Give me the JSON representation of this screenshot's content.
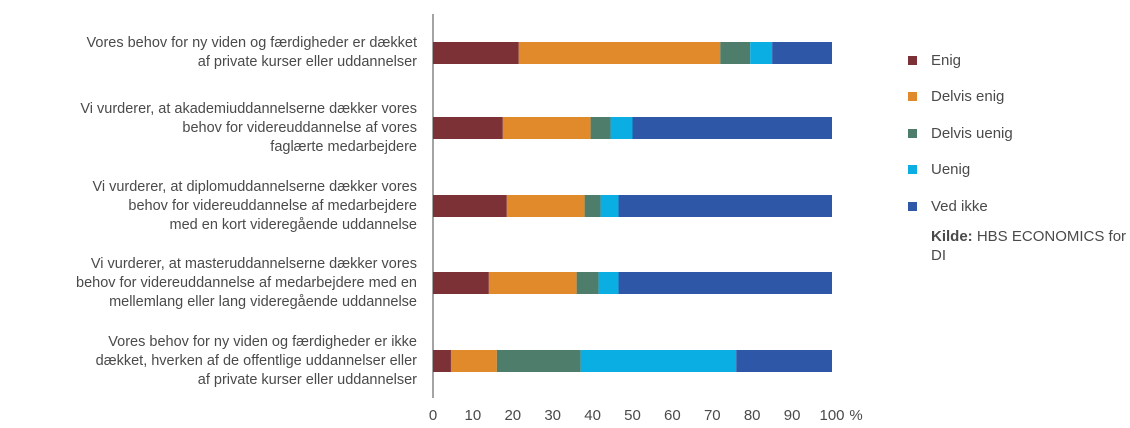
{
  "chart_data": {
    "type": "bar",
    "orientation": "horizontal",
    "stacked": true,
    "categories": [
      [
        "Vores behov for ny viden og færdigheder er dækket",
        "af private kurser eller uddannelser"
      ],
      [
        "Vi vurderer, at akademiuddannelserne dækker vores",
        "behov for videreuddannelse af vores",
        "faglærte medarbejdere"
      ],
      [
        "Vi vurderer, at diplomuddannelserne dækker vores",
        "behov for videreuddannelse af medarbejdere",
        "med en kort videregående uddannelse"
      ],
      [
        "Vi vurderer, at masteruddannelserne dækker vores",
        "behov for videreuddannelse af medarbejdere med en",
        "mellemlang eller lang videregående uddannelse"
      ],
      [
        "Vores behov for ny viden og færdigheder er ikke",
        "dækket, hverken af de offentlige uddannelser eller",
        "af private kurser eller uddannelser"
      ]
    ],
    "series": [
      {
        "name": "Enig",
        "color": "#7b3136",
        "values": [
          21.5,
          17.5,
          18.5,
          14.0,
          4.5
        ]
      },
      {
        "name": "Delvis enig",
        "color": "#e08a2c",
        "values": [
          50.5,
          22.0,
          19.5,
          22.0,
          11.5
        ]
      },
      {
        "name": "Delvis uenig",
        "color": "#4e7d6b",
        "values": [
          7.5,
          5.0,
          4.0,
          5.5,
          21.0
        ]
      },
      {
        "name": "Uenig",
        "color": "#0aaee3",
        "values": [
          5.5,
          5.5,
          4.5,
          5.0,
          39.0
        ]
      },
      {
        "name": "Ved ikke",
        "color": "#2e57a8",
        "values": [
          15.0,
          50.0,
          53.5,
          53.5,
          24.0
        ]
      }
    ],
    "xlim": [
      0,
      100
    ],
    "xticks": [
      "0",
      "10",
      "20",
      "30",
      "40",
      "50",
      "60",
      "70",
      "80",
      "90",
      "100"
    ],
    "xunit": "%",
    "grid": false,
    "legend_position": "right"
  },
  "source": {
    "label": "Kilde:",
    "text": "HBS ECONOMICS for DI"
  }
}
